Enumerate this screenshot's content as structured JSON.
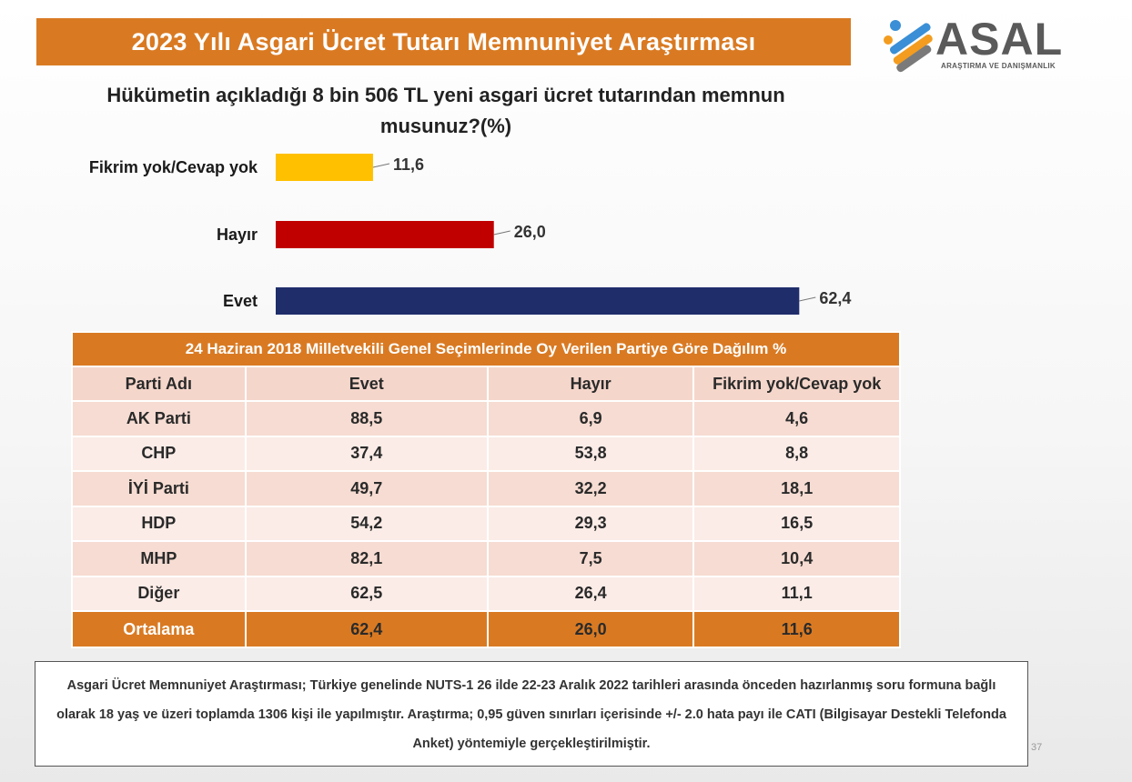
{
  "banner": {
    "title": "2023 Yılı Asgari Ücret Tutarı Memnuniyet Araştırması"
  },
  "logo": {
    "name": "ASAL",
    "subtitle": "ARAŞTIRMA VE DANIŞMANLIK"
  },
  "question": "Hükümetin açıkladığı 8 bin 506 TL yeni asgari ücret tutarından memnun musunuz?(%)",
  "colors": {
    "accent": "#d97a23",
    "evet": "#1f2d6b",
    "hayir": "#c00000",
    "fikrim_yok": "#ffc000"
  },
  "chart_data": {
    "type": "bar",
    "orientation": "horizontal",
    "categories": [
      "Fikrim yok/Cevap yok",
      "Hayır",
      "Evet"
    ],
    "values": [
      11.6,
      26.0,
      62.4
    ],
    "value_labels": [
      "11,6",
      "26,0",
      "62,4"
    ],
    "bar_colors": [
      "#ffc000",
      "#c00000",
      "#1f2d6b"
    ],
    "title": "Hükümetin açıkladığı 8 bin 506 TL yeni asgari ücret tutarından memnun musunuz?(%)",
    "xlabel": "",
    "ylabel": "",
    "xlim": [
      0,
      70
    ],
    "grid": false,
    "legend": "none"
  },
  "table": {
    "caption": "24 Haziran 2018 Milletvekili Genel Seçimlerinde Oy Verilen Partiye Göre Dağılım %",
    "headers": [
      "Parti Adı",
      "Evet",
      "Hayır",
      "Fikrim yok/Cevap yok"
    ],
    "rows": [
      [
        "AK Parti",
        "88,5",
        "6,9",
        "4,6"
      ],
      [
        "CHP",
        "37,4",
        "53,8",
        "8,8"
      ],
      [
        "İYİ Parti",
        "49,7",
        "32,2",
        "18,1"
      ],
      [
        "HDP",
        "54,2",
        "29,3",
        "16,5"
      ],
      [
        "MHP",
        "82,1",
        "7,5",
        "10,4"
      ],
      [
        "Diğer",
        "62,5",
        "26,4",
        "11,1"
      ]
    ],
    "average": [
      "Ortalama",
      "62,4",
      "26,0",
      "11,6"
    ]
  },
  "footnote": "Asgari Ücret Memnuniyet Araştırması; Türkiye genelinde NUTS-1 26 ilde 22-23 Aralık 2022 tarihleri arasında önceden hazırlanmış soru formuna bağlı olarak 18 yaş ve üzeri toplamda 1306 kişi ile yapılmıştır. Araştırma; 0,95 güven sınırları içerisinde +/- 2.0 hata payı ile CATI (Bilgisayar Destekli Telefonda Anket) yöntemiyle gerçekleştirilmiştir.",
  "page_number": "37"
}
